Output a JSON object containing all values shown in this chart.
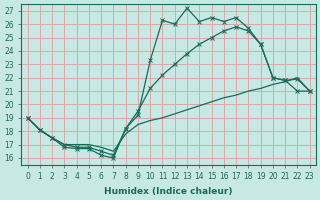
{
  "xlabel": "Humidex (Indice chaleur)",
  "xlim": [
    -0.5,
    23.5
  ],
  "ylim": [
    15.5,
    27.5
  ],
  "xticks": [
    0,
    1,
    2,
    3,
    4,
    5,
    6,
    7,
    8,
    9,
    10,
    11,
    12,
    13,
    14,
    15,
    16,
    17,
    18,
    19,
    20,
    21,
    22,
    23
  ],
  "yticks": [
    16,
    17,
    18,
    19,
    20,
    21,
    22,
    23,
    24,
    25,
    26,
    27
  ],
  "bg_color": "#c8e8e4",
  "grid_color": "#d8a8a8",
  "line_color": "#1a6a5a",
  "line1_x": [
    0,
    1,
    2,
    3,
    4,
    5,
    6,
    7,
    8,
    9,
    10,
    11,
    12,
    13,
    14,
    15,
    16,
    17,
    18,
    19,
    20,
    21,
    22,
    23
  ],
  "line1_y": [
    19.0,
    18.1,
    17.5,
    16.8,
    16.7,
    16.7,
    16.2,
    16.0,
    18.2,
    19.2,
    23.3,
    26.3,
    26.0,
    27.2,
    26.2,
    26.5,
    26.2,
    26.5,
    25.7,
    24.5,
    22.0,
    21.8,
    21.0,
    21.0
  ],
  "line2_x": [
    0,
    1,
    2,
    3,
    4,
    5,
    6,
    7,
    8,
    9,
    10,
    11,
    12,
    13,
    14,
    15,
    16,
    17,
    18,
    19,
    20,
    21,
    22,
    23
  ],
  "line2_y": [
    19.0,
    18.1,
    17.5,
    17.0,
    16.8,
    16.8,
    16.5,
    16.2,
    18.2,
    19.5,
    21.2,
    22.2,
    23.0,
    23.8,
    24.5,
    25.0,
    25.5,
    25.8,
    25.5,
    24.5,
    22.0,
    21.8,
    21.9,
    21.0
  ],
  "line3_x": [
    0,
    1,
    2,
    3,
    4,
    5,
    6,
    7,
    8,
    9,
    10,
    11,
    12,
    13,
    14,
    15,
    16,
    17,
    18,
    19,
    20,
    21,
    22,
    23
  ],
  "line3_y": [
    19.0,
    18.1,
    17.5,
    17.0,
    17.0,
    17.0,
    16.8,
    16.5,
    17.8,
    18.5,
    18.8,
    19.0,
    19.3,
    19.6,
    19.9,
    20.2,
    20.5,
    20.7,
    21.0,
    21.2,
    21.5,
    21.7,
    22.0,
    21.0
  ]
}
